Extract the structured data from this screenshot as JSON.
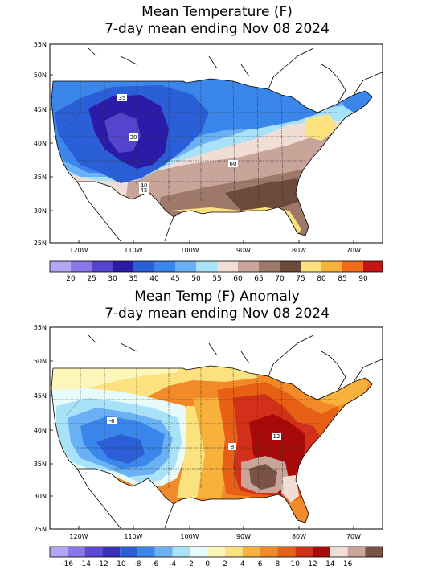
{
  "panel1": {
    "title_line1": "Mean Temperature (F)",
    "title_line2": "7-day mean ending Nov 08 2024",
    "lat_ticks": [
      "55N",
      "50N",
      "45N",
      "40N",
      "35N",
      "30N",
      "25N"
    ],
    "lon_ticks": [
      "120W",
      "110W",
      "100W",
      "90W",
      "80W",
      "70W"
    ],
    "contour_labels": [
      "35",
      "30",
      "60",
      "40",
      "45"
    ],
    "colorbar_labels": [
      "20",
      "25",
      "30",
      "35",
      "40",
      "45",
      "50",
      "55",
      "60",
      "65",
      "70",
      "75",
      "80",
      "85",
      "90"
    ],
    "colorbar_colors": [
      "#b4a6f5",
      "#8a78ea",
      "#5544cc",
      "#2c1aa8",
      "#2a5fd8",
      "#3b86ea",
      "#6ab0f4",
      "#a8e2f8",
      "#f0ddd6",
      "#c8a598",
      "#9e7868",
      "#6e4a3c",
      "#fbe27e",
      "#f8b23c",
      "#f06a1a",
      "#c51414"
    ]
  },
  "panel2": {
    "title_line1": "Mean Temp (F) Anomaly",
    "title_line2": "7-day mean ending Nov 08 2024",
    "lat_ticks": [
      "55N",
      "50N",
      "45N",
      "40N",
      "35N",
      "30N",
      "25N"
    ],
    "lon_ticks": [
      "120W",
      "110W",
      "100W",
      "90W",
      "80W",
      "70W"
    ],
    "contour_labels": [
      "-6",
      "8",
      "12"
    ],
    "colorbar_labels": [
      "-16",
      "-14",
      "-12",
      "-10",
      "-8",
      "-6",
      "-4",
      "-2",
      "0",
      "2",
      "4",
      "6",
      "8",
      "10",
      "12",
      "14",
      "16"
    ],
    "colorbar_colors": [
      "#b4a6f5",
      "#8a78ea",
      "#5b48d8",
      "#3a30c0",
      "#2a5fd8",
      "#3b86ea",
      "#6ab0f4",
      "#a8e2f8",
      "#e8fbfb",
      "#fdf6b8",
      "#fbe27e",
      "#f8b23c",
      "#f28a2a",
      "#e85f16",
      "#d2301a",
      "#a80a0a",
      "#f0ddd6",
      "#c8a598",
      "#7a5246"
    ]
  }
}
